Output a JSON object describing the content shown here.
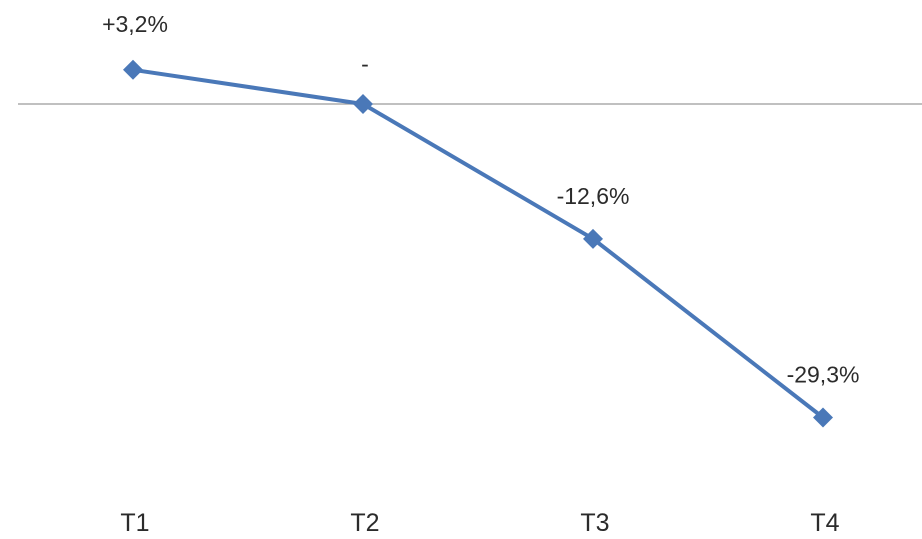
{
  "chart_data": {
    "type": "line",
    "categories": [
      "T1",
      "T2",
      "T3",
      "T4"
    ],
    "series": [
      {
        "values": [
          3.2,
          0,
          -12.6,
          -29.3
        ],
        "data_labels": [
          "+3,2%",
          "-",
          "-12,6%",
          "-29,3%"
        ],
        "color": "#4a78b8",
        "marker": "diamond"
      }
    ],
    "ylim": [
      -35,
      5
    ],
    "zero_line": true,
    "grid": false,
    "legend": "none",
    "title": "",
    "xlabel": "",
    "ylabel": ""
  },
  "colors": {
    "series": "#4a78b8",
    "zero_line": "#9a9a9a",
    "text": "#2b2b2b"
  }
}
